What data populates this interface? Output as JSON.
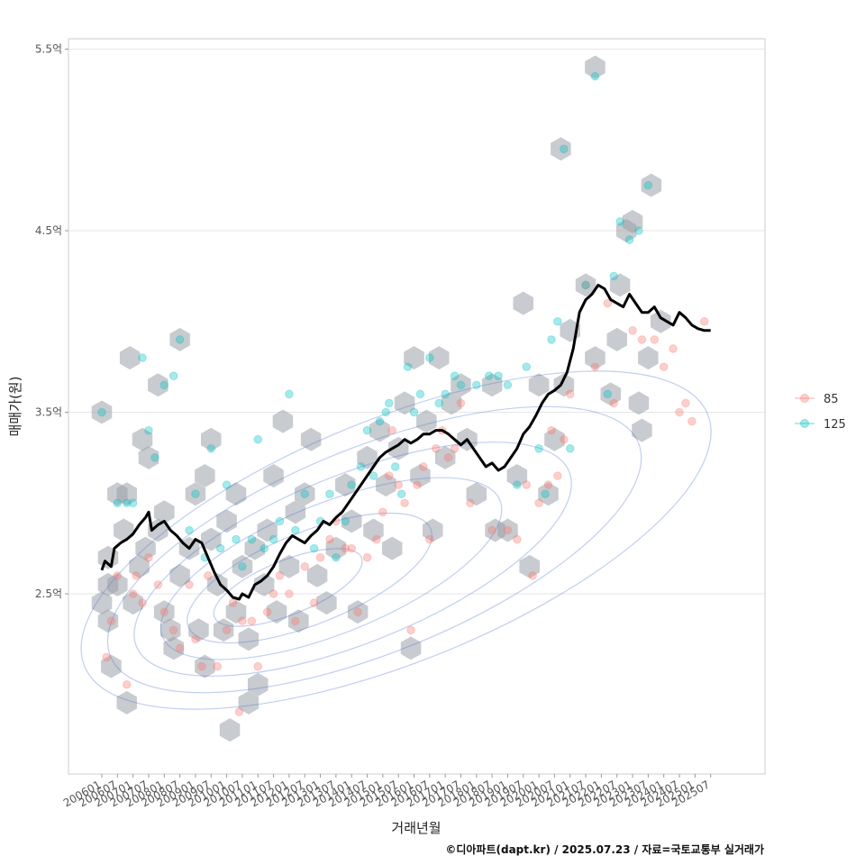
{
  "chart_data": {
    "type": "scatter",
    "xlabel": "거래년월",
    "ylabel": "매매가(원)",
    "caption": "©디아파트(dapt.kr) / 2025.07.23 / 자료=국토교통부 실거래가",
    "x_ticks": [
      "200601",
      "200607",
      "200701",
      "200707",
      "200801",
      "200807",
      "200901",
      "200907",
      "201001",
      "201007",
      "201101",
      "201107",
      "201201",
      "201207",
      "201301",
      "201307",
      "201401",
      "201407",
      "201501",
      "201507",
      "201601",
      "201607",
      "201701",
      "201707",
      "201801",
      "201807",
      "201901",
      "201907",
      "202001",
      "202007",
      "202101",
      "202107",
      "202201",
      "202207",
      "202301",
      "202307",
      "202401",
      "202407",
      "202501",
      "202507"
    ],
    "y_ticks": [
      {
        "v": 2.5,
        "label": "2.5억"
      },
      {
        "v": 3.5,
        "label": "3.5억"
      },
      {
        "v": 4.5,
        "label": "4.5억"
      },
      {
        "v": 5.5,
        "label": "5.5억"
      }
    ],
    "xlim": [
      2005.9,
      2026.0
    ],
    "ylim": [
      1.5,
      5.55
    ],
    "grid": true,
    "legend_position": "right",
    "colors": {
      "s85": "#F8766D",
      "s125": "#00BFC4",
      "hex": "#9aa0a8",
      "contour": "#4a74d6",
      "trend": "#000000"
    },
    "series": [
      {
        "name": "85",
        "points": [
          [
            2006.15,
            2.15
          ],
          [
            2006.3,
            2.35
          ],
          [
            2006.5,
            2.6
          ],
          [
            2006.8,
            2.0
          ],
          [
            2007.0,
            2.5
          ],
          [
            2007.1,
            2.6
          ],
          [
            2007.3,
            2.45
          ],
          [
            2007.5,
            2.7
          ],
          [
            2007.8,
            2.55
          ],
          [
            2008.0,
            2.4
          ],
          [
            2008.3,
            2.3
          ],
          [
            2008.5,
            2.2
          ],
          [
            2008.8,
            2.55
          ],
          [
            2009.0,
            2.25
          ],
          [
            2009.2,
            2.1
          ],
          [
            2009.4,
            2.6
          ],
          [
            2009.7,
            2.1
          ],
          [
            2010.0,
            2.3
          ],
          [
            2010.2,
            2.45
          ],
          [
            2010.4,
            1.85
          ],
          [
            2010.5,
            2.35
          ],
          [
            2010.8,
            2.35
          ],
          [
            2011.0,
            2.1
          ],
          [
            2011.3,
            2.4
          ],
          [
            2011.5,
            2.5
          ],
          [
            2011.7,
            2.6
          ],
          [
            2012.0,
            2.5
          ],
          [
            2012.2,
            2.35
          ],
          [
            2012.5,
            2.65
          ],
          [
            2012.8,
            2.45
          ],
          [
            2013.0,
            2.7
          ],
          [
            2013.3,
            2.8
          ],
          [
            2013.5,
            2.9
          ],
          [
            2013.8,
            2.75
          ],
          [
            2014.0,
            2.75
          ],
          [
            2014.2,
            2.4
          ],
          [
            2014.5,
            2.7
          ],
          [
            2014.8,
            2.8
          ],
          [
            2015.0,
            2.95
          ],
          [
            2015.2,
            3.15
          ],
          [
            2015.3,
            3.4
          ],
          [
            2015.5,
            3.1
          ],
          [
            2015.7,
            3.0
          ],
          [
            2015.9,
            2.3
          ],
          [
            2016.1,
            3.1
          ],
          [
            2016.3,
            3.2
          ],
          [
            2016.5,
            2.8
          ],
          [
            2016.7,
            3.3
          ],
          [
            2016.9,
            3.4
          ],
          [
            2017.1,
            3.25
          ],
          [
            2017.3,
            3.3
          ],
          [
            2017.5,
            3.55
          ],
          [
            2017.8,
            3.0
          ],
          [
            2018.5,
            2.85
          ],
          [
            2019.0,
            2.85
          ],
          [
            2019.3,
            2.8
          ],
          [
            2019.6,
            3.1
          ],
          [
            2019.8,
            2.6
          ],
          [
            2020.0,
            3.0
          ],
          [
            2020.3,
            3.1
          ],
          [
            2020.4,
            3.4
          ],
          [
            2020.6,
            3.15
          ],
          [
            2020.8,
            3.35
          ],
          [
            2021.0,
            3.6
          ],
          [
            2021.5,
            4.2
          ],
          [
            2021.8,
            3.75
          ],
          [
            2022.2,
            4.1
          ],
          [
            2022.4,
            3.55
          ],
          [
            2023.0,
            3.95
          ],
          [
            2023.3,
            3.9
          ],
          [
            2023.7,
            3.9
          ],
          [
            2024.0,
            3.75
          ],
          [
            2024.3,
            3.85
          ],
          [
            2024.5,
            3.5
          ],
          [
            2024.7,
            3.55
          ],
          [
            2024.9,
            3.45
          ],
          [
            2025.3,
            4.0
          ]
        ]
      },
      {
        "name": "125",
        "points": [
          [
            2006.0,
            3.5
          ],
          [
            2006.5,
            3.0
          ],
          [
            2006.8,
            3.0
          ],
          [
            2007.0,
            3.0
          ],
          [
            2007.3,
            3.8
          ],
          [
            2007.5,
            3.4
          ],
          [
            2007.7,
            3.25
          ],
          [
            2008.0,
            3.65
          ],
          [
            2008.3,
            3.7
          ],
          [
            2008.5,
            3.9
          ],
          [
            2008.8,
            2.85
          ],
          [
            2009.0,
            3.05
          ],
          [
            2009.3,
            2.7
          ],
          [
            2009.5,
            3.3
          ],
          [
            2009.8,
            2.75
          ],
          [
            2010.0,
            3.1
          ],
          [
            2010.3,
            2.8
          ],
          [
            2010.5,
            2.65
          ],
          [
            2010.8,
            2.8
          ],
          [
            2011.0,
            3.35
          ],
          [
            2011.2,
            2.75
          ],
          [
            2011.5,
            2.8
          ],
          [
            2011.7,
            2.9
          ],
          [
            2012.0,
            3.6
          ],
          [
            2012.2,
            2.85
          ],
          [
            2012.5,
            3.05
          ],
          [
            2012.8,
            2.75
          ],
          [
            2013.0,
            2.9
          ],
          [
            2013.3,
            3.05
          ],
          [
            2013.5,
            2.7
          ],
          [
            2013.8,
            2.9
          ],
          [
            2014.0,
            3.1
          ],
          [
            2014.3,
            3.2
          ],
          [
            2014.5,
            3.4
          ],
          [
            2014.7,
            3.15
          ],
          [
            2014.9,
            3.45
          ],
          [
            2015.1,
            3.5
          ],
          [
            2015.2,
            3.55
          ],
          [
            2015.4,
            3.2
          ],
          [
            2015.6,
            3.05
          ],
          [
            2015.8,
            3.75
          ],
          [
            2016.0,
            3.5
          ],
          [
            2016.2,
            3.6
          ],
          [
            2016.5,
            3.8
          ],
          [
            2016.8,
            3.55
          ],
          [
            2017.0,
            3.6
          ],
          [
            2017.3,
            3.7
          ],
          [
            2017.5,
            3.65
          ],
          [
            2018.0,
            3.65
          ],
          [
            2018.4,
            3.7
          ],
          [
            2018.7,
            3.7
          ],
          [
            2019.0,
            3.65
          ],
          [
            2019.3,
            3.1
          ],
          [
            2019.6,
            3.75
          ],
          [
            2020.0,
            3.3
          ],
          [
            2020.2,
            3.05
          ],
          [
            2020.4,
            3.9
          ],
          [
            2020.6,
            4.0
          ],
          [
            2020.8,
            4.95
          ],
          [
            2021.0,
            3.3
          ],
          [
            2021.5,
            4.2
          ],
          [
            2021.8,
            5.35
          ],
          [
            2022.2,
            3.6
          ],
          [
            2022.4,
            4.25
          ],
          [
            2022.6,
            4.55
          ],
          [
            2022.9,
            4.45
          ],
          [
            2023.2,
            4.5
          ],
          [
            2023.5,
            4.75
          ]
        ]
      }
    ],
    "trend_line": {
      "x": [
        2006.0,
        2006.1,
        2006.3,
        2006.4,
        2006.6,
        2006.8,
        2007.0,
        2007.2,
        2007.4,
        2007.5,
        2007.6,
        2007.8,
        2008.0,
        2008.2,
        2008.4,
        2008.6,
        2008.8,
        2009.0,
        2009.2,
        2009.4,
        2009.6,
        2009.8,
        2010.0,
        2010.2,
        2010.4,
        2010.5,
        2010.7,
        2010.9,
        2011.1,
        2011.3,
        2011.5,
        2011.7,
        2011.9,
        2012.1,
        2012.3,
        2012.5,
        2012.7,
        2012.9,
        2013.1,
        2013.3,
        2013.5,
        2013.7,
        2013.9,
        2014.1,
        2014.3,
        2014.5,
        2014.7,
        2014.9,
        2015.1,
        2015.3,
        2015.5,
        2015.7,
        2015.9,
        2016.1,
        2016.3,
        2016.5,
        2016.7,
        2016.9,
        2017.1,
        2017.3,
        2017.5,
        2017.7,
        2017.9,
        2018.1,
        2018.3,
        2018.5,
        2018.7,
        2018.9,
        2019.1,
        2019.3,
        2019.5,
        2019.7,
        2019.9,
        2020.1,
        2020.3,
        2020.5,
        2020.7,
        2020.9,
        2021.1,
        2021.3,
        2021.5,
        2021.7,
        2021.9,
        2022.1,
        2022.3,
        2022.5,
        2022.7,
        2022.9,
        2023.1,
        2023.3,
        2023.5,
        2023.7,
        2023.9,
        2024.1,
        2024.3,
        2024.5,
        2024.7,
        2024.9,
        2025.1,
        2025.3,
        2025.5
      ],
      "y": [
        2.63,
        2.68,
        2.65,
        2.75,
        2.78,
        2.8,
        2.83,
        2.88,
        2.92,
        2.95,
        2.85,
        2.88,
        2.9,
        2.85,
        2.82,
        2.78,
        2.75,
        2.8,
        2.78,
        2.7,
        2.62,
        2.55,
        2.52,
        2.48,
        2.47,
        2.5,
        2.48,
        2.55,
        2.57,
        2.6,
        2.65,
        2.72,
        2.78,
        2.82,
        2.8,
        2.78,
        2.82,
        2.85,
        2.9,
        2.88,
        2.92,
        2.95,
        3.0,
        3.05,
        3.1,
        3.15,
        3.2,
        3.25,
        3.28,
        3.3,
        3.32,
        3.35,
        3.33,
        3.35,
        3.38,
        3.38,
        3.4,
        3.4,
        3.38,
        3.35,
        3.32,
        3.35,
        3.3,
        3.25,
        3.2,
        3.22,
        3.18,
        3.2,
        3.25,
        3.3,
        3.38,
        3.42,
        3.48,
        3.55,
        3.6,
        3.62,
        3.65,
        3.72,
        3.85,
        4.05,
        4.12,
        4.15,
        4.2,
        4.18,
        4.12,
        4.1,
        4.08,
        4.15,
        4.1,
        4.05,
        4.05,
        4.08,
        4.02,
        4.0,
        3.98,
        4.05,
        4.02,
        3.98,
        3.96,
        3.95,
        3.95
      ]
    },
    "hex_centers": [
      [
        2006.0,
        3.5
      ],
      [
        2006.0,
        2.45
      ],
      [
        2006.2,
        2.7
      ],
      [
        2006.2,
        2.55
      ],
      [
        2006.2,
        2.35
      ],
      [
        2006.3,
        2.1
      ],
      [
        2006.5,
        3.05
      ],
      [
        2006.5,
        2.55
      ],
      [
        2006.7,
        2.85
      ],
      [
        2006.8,
        3.05
      ],
      [
        2006.8,
        1.9
      ],
      [
        2006.9,
        3.8
      ],
      [
        2007.0,
        2.45
      ],
      [
        2007.2,
        2.65
      ],
      [
        2007.3,
        3.35
      ],
      [
        2007.4,
        2.75
      ],
      [
        2007.5,
        3.25
      ],
      [
        2007.8,
        3.65
      ],
      [
        2007.8,
        2.85
      ],
      [
        2008.0,
        2.95
      ],
      [
        2008.0,
        2.4
      ],
      [
        2008.2,
        2.3
      ],
      [
        2008.3,
        2.2
      ],
      [
        2008.5,
        3.9
      ],
      [
        2008.5,
        2.6
      ],
      [
        2008.8,
        2.75
      ],
      [
        2009.0,
        3.05
      ],
      [
        2009.1,
        2.3
      ],
      [
        2009.3,
        3.15
      ],
      [
        2009.3,
        2.1
      ],
      [
        2009.5,
        3.35
      ],
      [
        2009.5,
        2.8
      ],
      [
        2009.7,
        2.55
      ],
      [
        2009.9,
        2.3
      ],
      [
        2010.0,
        2.9
      ],
      [
        2010.1,
        1.75
      ],
      [
        2010.3,
        3.05
      ],
      [
        2010.3,
        2.4
      ],
      [
        2010.5,
        2.65
      ],
      [
        2010.7,
        2.25
      ],
      [
        2010.7,
        1.9
      ],
      [
        2010.9,
        2.75
      ],
      [
        2011.0,
        2.0
      ],
      [
        2011.2,
        2.55
      ],
      [
        2011.3,
        2.85
      ],
      [
        2011.5,
        3.15
      ],
      [
        2011.6,
        2.4
      ],
      [
        2011.8,
        3.45
      ],
      [
        2012.0,
        2.65
      ],
      [
        2012.2,
        2.95
      ],
      [
        2012.3,
        2.35
      ],
      [
        2012.5,
        3.05
      ],
      [
        2012.7,
        3.35
      ],
      [
        2012.9,
        2.6
      ],
      [
        2013.2,
        2.45
      ],
      [
        2013.5,
        2.75
      ],
      [
        2013.8,
        3.1
      ],
      [
        2014.0,
        2.9
      ],
      [
        2014.2,
        2.4
      ],
      [
        2014.5,
        3.25
      ],
      [
        2014.7,
        2.85
      ],
      [
        2014.9,
        3.4
      ],
      [
        2015.1,
        3.1
      ],
      [
        2015.3,
        2.75
      ],
      [
        2015.5,
        3.3
      ],
      [
        2015.7,
        3.55
      ],
      [
        2015.9,
        2.2
      ],
      [
        2016.0,
        3.8
      ],
      [
        2016.2,
        3.15
      ],
      [
        2016.4,
        3.45
      ],
      [
        2016.6,
        2.85
      ],
      [
        2016.8,
        3.8
      ],
      [
        2017.0,
        3.25
      ],
      [
        2017.2,
        3.55
      ],
      [
        2017.5,
        3.65
      ],
      [
        2017.7,
        3.35
      ],
      [
        2018.0,
        3.05
      ],
      [
        2018.5,
        3.65
      ],
      [
        2018.6,
        2.85
      ],
      [
        2019.0,
        2.85
      ],
      [
        2019.3,
        3.15
      ],
      [
        2019.5,
        4.1
      ],
      [
        2019.7,
        2.65
      ],
      [
        2020.0,
        3.65
      ],
      [
        2020.3,
        3.05
      ],
      [
        2020.5,
        3.35
      ],
      [
        2020.7,
        4.95
      ],
      [
        2020.8,
        3.65
      ],
      [
        2021.0,
        3.95
      ],
      [
        2021.5,
        4.2
      ],
      [
        2021.8,
        5.4
      ],
      [
        2021.8,
        3.8
      ],
      [
        2022.3,
        3.6
      ],
      [
        2022.5,
        3.9
      ],
      [
        2022.6,
        4.2
      ],
      [
        2022.8,
        4.5
      ],
      [
        2023.0,
        4.55
      ],
      [
        2023.2,
        3.55
      ],
      [
        2023.3,
        3.4
      ],
      [
        2023.5,
        3.8
      ],
      [
        2023.6,
        4.75
      ],
      [
        2023.9,
        4.0
      ]
    ],
    "contour_levels": [
      0.15,
      0.3,
      0.45,
      0.6,
      0.75,
      0.9
    ]
  }
}
